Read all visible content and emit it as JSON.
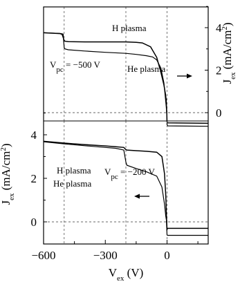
{
  "chart_data": [
    {
      "type": "line",
      "panel": "top",
      "x_axis": {
        "label": "V",
        "label_sub": "ex",
        "unit": "(V)",
        "range": [
          -600,
          200
        ],
        "ticks": [
          -600,
          -300,
          0
        ]
      },
      "y_axis": {
        "side": "right",
        "label": "J",
        "label_sub": "ex",
        "unit_pre": "(mA/cm",
        "unit_sup": "2",
        "unit_post": ")",
        "range": [
          -0.4,
          5.2
        ],
        "ticks": [
          0,
          2,
          4
        ]
      },
      "annotations": [
        {
          "id": "vpc",
          "text_main": "V",
          "text_sub": "pc",
          "text_rest": " = −500 V"
        },
        {
          "id": "label_h",
          "text": "H plasma"
        },
        {
          "id": "label_he",
          "text": "He plasma"
        },
        {
          "id": "arrow",
          "direction": "right"
        }
      ],
      "reference_lines": {
        "x": [
          -500,
          -200,
          0
        ],
        "y": [
          0
        ]
      },
      "series": [
        {
          "name": "H plasma",
          "x": [
            -600,
            -520,
            -510,
            -500,
            -495,
            -480,
            -400,
            -300,
            -200,
            -150,
            -120,
            -80,
            -50,
            -30,
            -15,
            -8,
            -4,
            -1,
            0,
            2,
            4,
            200
          ],
          "y": [
            3.76,
            3.72,
            3.68,
            3.4,
            3.36,
            3.34,
            3.33,
            3.33,
            3.33,
            3.31,
            3.28,
            3.1,
            2.6,
            1.9,
            1.3,
            0.9,
            0.6,
            -0.05,
            -0.44,
            -0.46,
            -0.48,
            -0.5
          ]
        },
        {
          "name": "He plasma",
          "x": [
            -600,
            -520,
            -505,
            -500,
            -495,
            -480,
            -400,
            -300,
            -200,
            -150,
            -100,
            -70,
            -50,
            -30,
            -15,
            -8,
            -4,
            -1,
            0,
            2,
            4,
            200
          ],
          "y": [
            3.76,
            3.73,
            3.7,
            3.05,
            3.0,
            2.96,
            2.9,
            2.84,
            2.79,
            2.74,
            2.68,
            2.62,
            2.48,
            2.1,
            1.4,
            0.7,
            0.3,
            -0.1,
            -0.56,
            -0.6,
            -0.62,
            -0.64
          ]
        }
      ]
    },
    {
      "type": "line",
      "panel": "bottom",
      "x_axis": {
        "label": "V",
        "label_sub": "ex",
        "unit": "(V)",
        "range": [
          -600,
          200
        ],
        "ticks": [
          -600,
          -300,
          0
        ]
      },
      "y_axis": {
        "side": "left",
        "label": "J",
        "label_sub": "ex",
        "unit_pre": "(mA/cm",
        "unit_sup": "2",
        "unit_post": ")",
        "range": [
          -0.9,
          5.2
        ],
        "ticks": [
          0,
          2,
          4
        ]
      },
      "annotations": [
        {
          "id": "vpc",
          "text_main": "V",
          "text_sub": "pc",
          "text_rest": " = −200 V"
        },
        {
          "id": "label_h",
          "text": "H plasma"
        },
        {
          "id": "label_he",
          "text": "He plasma"
        },
        {
          "id": "arrow",
          "direction": "left"
        }
      ],
      "reference_lines": {
        "x": [
          -500,
          -200,
          0
        ],
        "y": [
          0
        ]
      },
      "series": [
        {
          "name": "H plasma",
          "x": [
            -600,
            -500,
            -400,
            -300,
            -250,
            -210,
            -200,
            -195,
            -150,
            -100,
            -50,
            -25,
            -12,
            -6,
            -3,
            0,
            3,
            200
          ],
          "y": [
            3.7,
            3.62,
            3.55,
            3.49,
            3.45,
            3.42,
            3.32,
            3.3,
            3.27,
            3.24,
            3.2,
            3.0,
            2.2,
            1.2,
            0.3,
            -0.35,
            -0.3,
            -0.3
          ]
        },
        {
          "name": "He plasma",
          "x": [
            -600,
            -500,
            -400,
            -300,
            -250,
            -210,
            -200,
            -195,
            -150,
            -100,
            -50,
            -25,
            -12,
            -6,
            -3,
            0,
            3,
            200
          ],
          "y": [
            3.68,
            3.58,
            3.5,
            3.42,
            3.38,
            3.3,
            2.75,
            2.6,
            2.45,
            2.3,
            2.1,
            1.6,
            0.8,
            0.25,
            0.08,
            -0.6,
            -0.62,
            -0.62
          ]
        }
      ]
    }
  ]
}
